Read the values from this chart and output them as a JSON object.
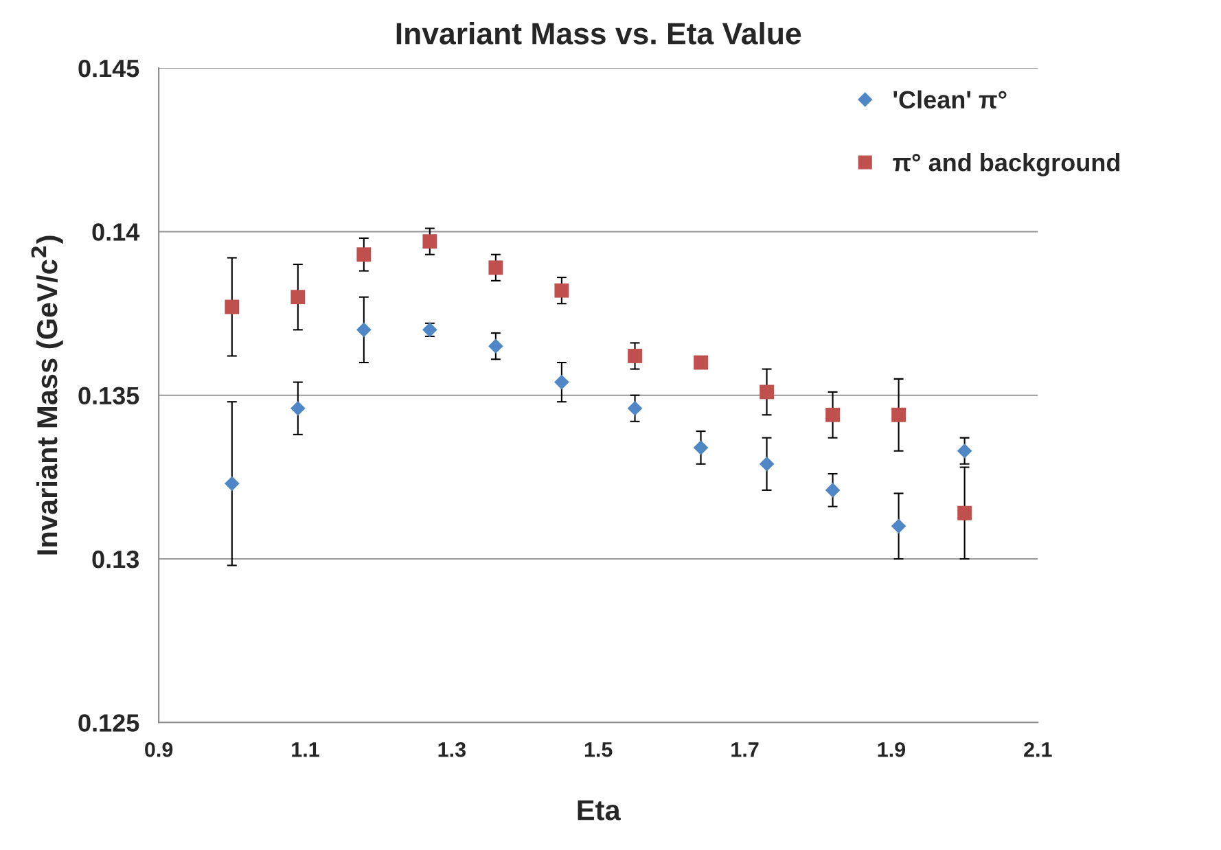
{
  "chart_data": {
    "type": "scatter",
    "title": "Invariant Mass vs. Eta Value",
    "xlabel": "Eta",
    "ylabel": "Invariant Mass (GeV/c$^{2}$)",
    "xlim": [
      0.9,
      2.1
    ],
    "xticks": [
      0.9,
      1.1,
      1.3,
      1.5,
      1.7,
      1.9,
      2.1
    ],
    "ylim": [
      0.125,
      0.145
    ],
    "yticks": [
      0.125,
      0.13,
      0.135,
      0.14,
      0.145
    ],
    "grid": "y",
    "legend": "top right",
    "x": [
      1.0,
      1.09,
      1.18,
      1.27,
      1.36,
      1.45,
      1.55,
      1.64,
      1.73,
      1.82,
      1.91,
      2.0
    ],
    "series": [
      {
        "name": "'Clean' π°",
        "color": "#4f86c6",
        "marker": "diamond",
        "values": [
          0.1323,
          0.1346,
          0.137,
          0.137,
          0.1365,
          0.1354,
          0.1346,
          0.1334,
          0.1329,
          0.1321,
          0.131,
          0.1333
        ],
        "errors": [
          0.0025,
          0.0008,
          0.001,
          0.0002,
          0.0004,
          0.0006,
          0.0004,
          0.0005,
          0.0008,
          0.0005,
          0.001,
          0.0004
        ]
      },
      {
        "name": "π° and background",
        "color": "#c0504d",
        "marker": "square",
        "values": [
          0.1377,
          0.138,
          0.1393,
          0.1397,
          0.1389,
          0.1382,
          0.1362,
          0.136,
          0.1351,
          0.1344,
          0.1344,
          0.1314
        ],
        "errors": [
          0.0015,
          0.001,
          0.0005,
          0.0004,
          0.0004,
          0.0004,
          0.0004,
          null,
          0.0007,
          0.0007,
          0.0011,
          0.0014
        ]
      }
    ]
  }
}
